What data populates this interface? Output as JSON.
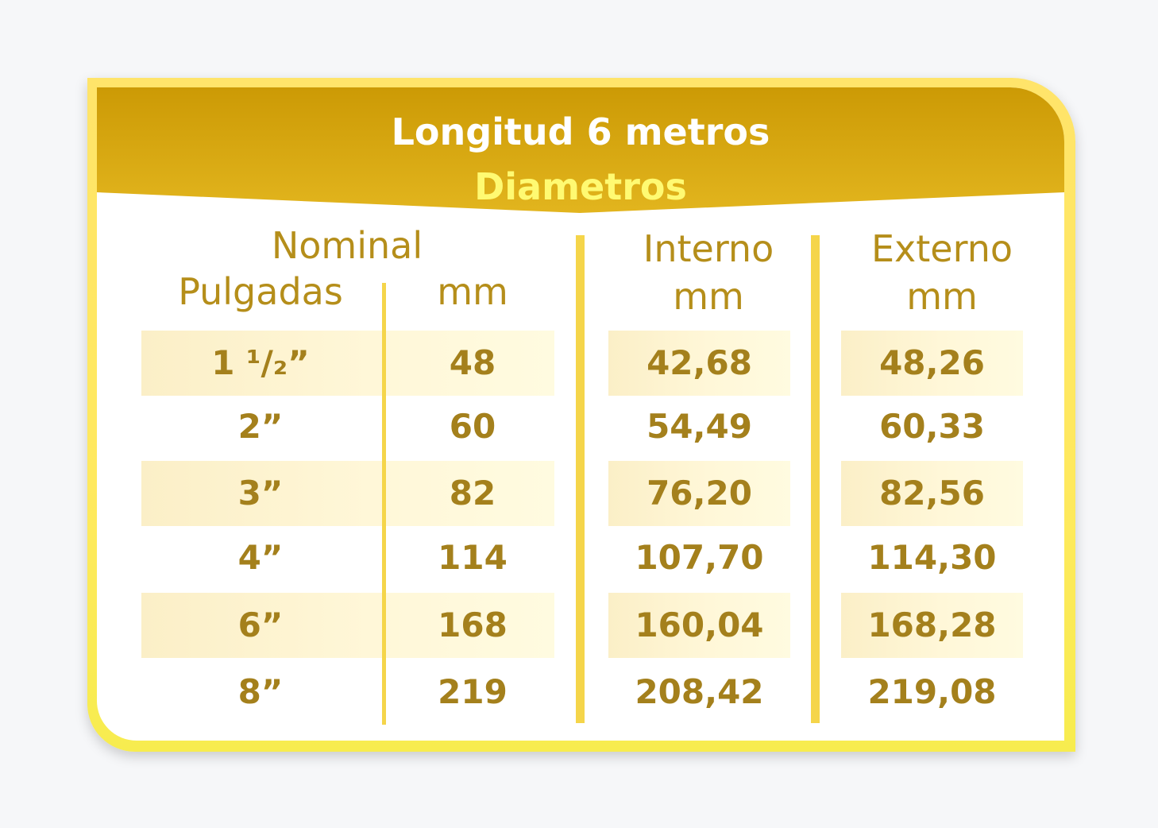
{
  "table": {
    "title": "Longitud 6 metros",
    "subtitle": "Diametros",
    "headers": {
      "nominal": "Nominal",
      "pulgadas": "Pulgadas",
      "nominal_mm": "mm",
      "interno": "Interno",
      "interno_unit": "mm",
      "externo": "Externo",
      "externo_unit": "mm"
    },
    "rows": [
      {
        "pulgadas": "1 ¹/₂”",
        "mm": "48",
        "interno": "42,68",
        "externo": "48,26"
      },
      {
        "pulgadas": "2”",
        "mm": "60",
        "interno": "54,49",
        "externo": "60,33"
      },
      {
        "pulgadas": "3”",
        "mm": "82",
        "interno": "76,20",
        "externo": "82,56"
      },
      {
        "pulgadas": "4”",
        "mm": "114",
        "interno": "107,70",
        "externo": "114,30"
      },
      {
        "pulgadas": "6”",
        "mm": "168",
        "interno": "160,04",
        "externo": "168,28"
      },
      {
        "pulgadas": "8”",
        "mm": "219",
        "interno": "208,42",
        "externo": "219,08"
      }
    ]
  },
  "colors": {
    "header_gold": "#cf9e08",
    "frame_yellow": "#ffe95e",
    "text_gold": "#a4801c",
    "divider": "#f5d54a"
  }
}
